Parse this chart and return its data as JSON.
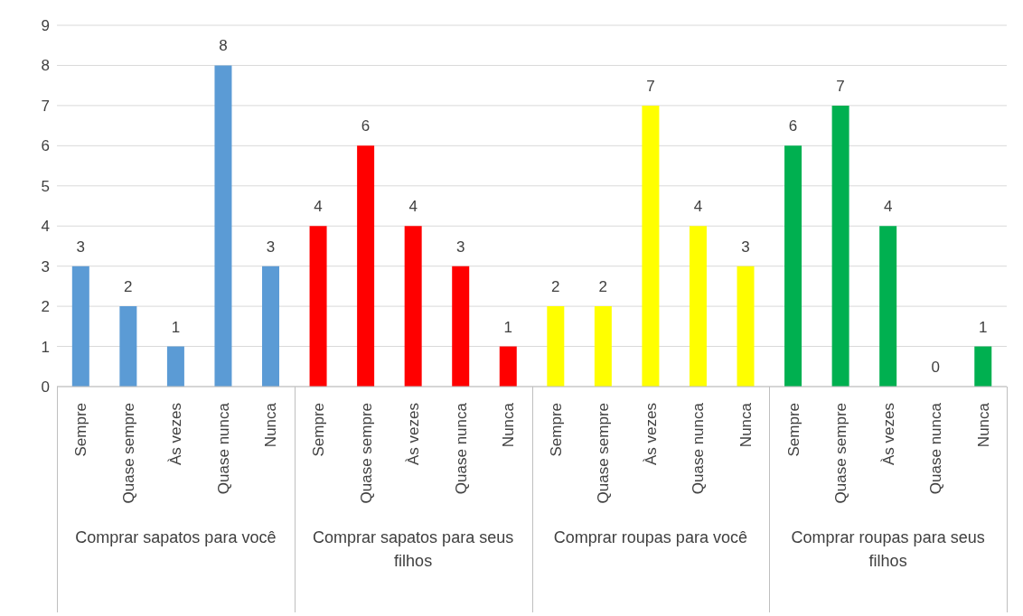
{
  "chart_data": {
    "type": "bar",
    "categories": [
      "Sempre",
      "Quase sempre",
      "Às vezes",
      "Quase nunca",
      "Nunca",
      "Sempre",
      "Quase sempre",
      "Às vezes",
      "Quase nunca",
      "Nunca",
      "Sempre",
      "Quase sempre",
      "Às vezes",
      "Quase nunca",
      "Nunca",
      "Sempre",
      "Quase sempre",
      "Às vezes",
      "Quase nunca",
      "Nunca"
    ],
    "values": [
      3,
      2,
      1,
      8,
      3,
      4,
      6,
      4,
      3,
      1,
      2,
      2,
      7,
      4,
      3,
      6,
      7,
      4,
      0,
      1
    ],
    "colors": [
      "#5b9bd5",
      "#5b9bd5",
      "#5b9bd5",
      "#5b9bd5",
      "#5b9bd5",
      "#ff0000",
      "#ff0000",
      "#ff0000",
      "#ff0000",
      "#ff0000",
      "#ffff00",
      "#ffff00",
      "#ffff00",
      "#ffff00",
      "#ffff00",
      "#00b050",
      "#00b050",
      "#00b050",
      "#00b050",
      "#00b050"
    ],
    "annotations": [
      "Comprar sapatos para você",
      "Comprar sapatos para seus filhos",
      "Comprar roupas para você",
      "Comprar roupas para seus filhos"
    ],
    "ylim": [
      0,
      9
    ],
    "yticks": [
      0,
      1,
      2,
      3,
      4,
      5,
      6,
      7,
      8,
      9
    ],
    "grid": "y",
    "data_labels": true
  }
}
